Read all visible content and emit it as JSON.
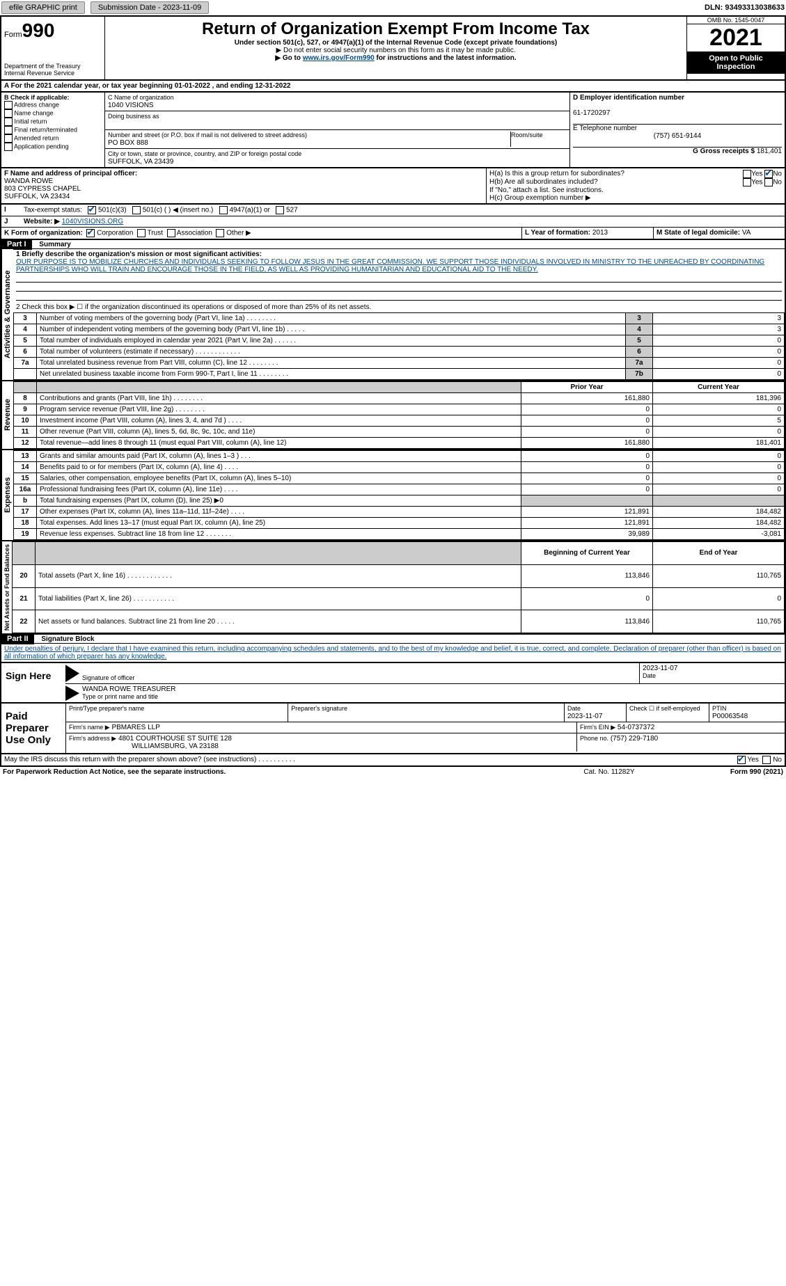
{
  "topbar": {
    "efile": "efile GRAPHIC print",
    "submission": "Submission Date - 2023-11-09",
    "dln": "DLN: 93493313038633"
  },
  "header": {
    "form_prefix": "Form",
    "form_num": "990",
    "dept": "Department of the Treasury",
    "irs": "Internal Revenue Service",
    "title": "Return of Organization Exempt From Income Tax",
    "sub1": "Under section 501(c), 527, or 4947(a)(1) of the Internal Revenue Code (except private foundations)",
    "sub2": "▶ Do not enter social security numbers on this form as it may be made public.",
    "sub3_pre": "▶ Go to ",
    "sub3_link": "www.irs.gov/Form990",
    "sub3_post": " for instructions and the latest information.",
    "omb": "OMB No. 1545-0047",
    "year": "2021",
    "open": "Open to Public Inspection"
  },
  "lineA": "A For the 2021 calendar year, or tax year beginning 01-01-2022    , and ending 12-31-2022",
  "B": {
    "label": "B Check if applicable:",
    "opts": [
      "Address change",
      "Name change",
      "Initial return",
      "Final return/terminated",
      "Amended return",
      "Application pending"
    ]
  },
  "C": {
    "name_lbl": "C Name of organization",
    "name_val": "1040 VISIONS",
    "dba_lbl": "Doing business as",
    "addr_lbl": "Number and street (or P.O. box if mail is not delivered to street address)",
    "room_lbl": "Room/suite",
    "addr_val": "PO BOX 888",
    "city_lbl": "City or town, state or province, country, and ZIP or foreign postal code",
    "city_val": "SUFFOLK, VA  23439"
  },
  "D": {
    "lbl": "D Employer identification number",
    "val": "61-1720297"
  },
  "E": {
    "lbl": "E Telephone number",
    "val": "(757) 651-9144"
  },
  "G": {
    "lbl": "G Gross receipts $",
    "val": "181,401"
  },
  "F": {
    "lbl": "F  Name and address of principal officer:",
    "name": "WANDA ROWE",
    "addr1": "803 CYPRESS CHAPEL",
    "addr2": "SUFFOLK, VA  23434"
  },
  "H": {
    "a": "H(a)  Is this a group return for subordinates?",
    "b": "H(b)  Are all subordinates included?",
    "b2": "If \"No,\" attach a list. See instructions.",
    "c": "H(c)  Group exemption number ▶"
  },
  "I": {
    "lbl": "Tax-exempt status:",
    "o1": "501(c)(3)",
    "o2": "501(c) (    ) ◀ (insert no.)",
    "o3": "4947(a)(1) or",
    "o4": "527"
  },
  "J": {
    "lbl": "Website: ▶",
    "val": "1040VISIONS.ORG"
  },
  "K": {
    "lbl": "K Form of organization:",
    "o1": "Corporation",
    "o2": "Trust",
    "o3": "Association",
    "o4": "Other ▶"
  },
  "L": {
    "lbl": "L Year of formation:",
    "val": "2013"
  },
  "M": {
    "lbl": "M State of legal domicile:",
    "val": "VA"
  },
  "part1": {
    "num": "Part I",
    "title": "Summary"
  },
  "summary": {
    "l1_lbl": "1  Briefly describe the organization's mission or most significant activities:",
    "l1_val": "OUR PURPOSE IS TO MOBILIZE CHURCHES AND INDIVIDUALS SEEKING TO FOLLOW JESUS IN THE GREAT COMMISSION. WE SUPPORT THOSE INDIVIDUALS INVOLVED IN MINISTRY TO THE UNREACHED BY COORDINATING PARTNERSHIPS WHO WILL TRAIN AND ENCOURAGE THOSE IN THE FIELD, AS WELL AS PROVIDING HUMANITARIAN AND EDUCATIONAL AID TO THE NEEDY.",
    "l2": "2    Check this box ▶ ☐  if the organization discontinued its operations or disposed of more than 25% of its net assets.",
    "rows_ag": [
      {
        "n": "3",
        "t": "Number of voting members of the governing body (Part VI, line 1a)   .    .    .    .    .    .    .    .",
        "box": "3",
        "v": "3"
      },
      {
        "n": "4",
        "t": "Number of independent voting members of the governing body (Part VI, line 1b)   .    .    .    .    .",
        "box": "4",
        "v": "3"
      },
      {
        "n": "5",
        "t": "Total number of individuals employed in calendar year 2021 (Part V, line 2a)    .    .    .    .    .    .",
        "box": "5",
        "v": "0"
      },
      {
        "n": "6",
        "t": "Total number of volunteers (estimate if necessary)    .    .    .    .    .    .    .    .    .    .    .    .",
        "box": "6",
        "v": "0"
      },
      {
        "n": "7a",
        "t": "Total unrelated business revenue from Part VIII, column (C), line 12    .    .    .    .    .    .    .    .",
        "box": "7a",
        "v": "0"
      },
      {
        "n": "",
        "t": "Net unrelated business taxable income from Form 990-T, Part I, line 11   .    .    .    .    .    .    .    .",
        "box": "7b",
        "v": "0"
      }
    ],
    "col_prior": "Prior Year",
    "col_curr": "Current Year",
    "rev": [
      {
        "n": "8",
        "t": "Contributions and grants (Part VIII, line 1h)    .    .    .    .    .    .    .    .",
        "p": "161,880",
        "c": "181,396"
      },
      {
        "n": "9",
        "t": "Program service revenue (Part VIII, line 2g)   .    .    .    .    .    .    .    .",
        "p": "0",
        "c": "0"
      },
      {
        "n": "10",
        "t": "Investment income (Part VIII, column (A), lines 3, 4, and 7d )    .    .    .    .",
        "p": "0",
        "c": "5"
      },
      {
        "n": "11",
        "t": "Other revenue (Part VIII, column (A), lines 5, 6d, 8c, 9c, 10c, and 11e)",
        "p": "0",
        "c": "0"
      },
      {
        "n": "12",
        "t": "Total revenue—add lines 8 through 11 (must equal Part VIII, column (A), line 12)",
        "p": "161,880",
        "c": "181,401"
      }
    ],
    "exp": [
      {
        "n": "13",
        "t": "Grants and similar amounts paid (Part IX, column (A), lines 1–3 )   .    .    .",
        "p": "0",
        "c": "0"
      },
      {
        "n": "14",
        "t": "Benefits paid to or for members (Part IX, column (A), line 4)   .    .    .    .",
        "p": "0",
        "c": "0"
      },
      {
        "n": "15",
        "t": "Salaries, other compensation, employee benefits (Part IX, column (A), lines 5–10)",
        "p": "0",
        "c": "0"
      },
      {
        "n": "16a",
        "t": "Professional fundraising fees (Part IX, column (A), line 11e)   .    .    .    .",
        "p": "0",
        "c": "0"
      },
      {
        "n": "b",
        "t": "Total fundraising expenses (Part IX, column (D), line 25) ▶0",
        "p": "",
        "c": "",
        "shade": true
      },
      {
        "n": "17",
        "t": "Other expenses (Part IX, column (A), lines 11a–11d, 11f–24e)    .    .    .    .",
        "p": "121,891",
        "c": "184,482"
      },
      {
        "n": "18",
        "t": "Total expenses. Add lines 13–17 (must equal Part IX, column (A), line 25)",
        "p": "121,891",
        "c": "184,482"
      },
      {
        "n": "19",
        "t": "Revenue less expenses. Subtract line 18 from line 12 .    .    .    .    .    .    .",
        "p": "39,989",
        "c": "-3,081"
      }
    ],
    "col_boy": "Beginning of Current Year",
    "col_eoy": "End of Year",
    "net": [
      {
        "n": "20",
        "t": "Total assets (Part X, line 16)   .    .    .    .    .    .    .    .    .    .    .    .",
        "p": "113,846",
        "c": "110,765"
      },
      {
        "n": "21",
        "t": "Total liabilities (Part X, line 26)    .    .    .    .    .    .    .    .    .    .    .",
        "p": "0",
        "c": "0"
      },
      {
        "n": "22",
        "t": "Net assets or fund balances. Subtract line 21 from line 20    .    .    .    .    .",
        "p": "113,846",
        "c": "110,765"
      }
    ],
    "vtab_ag": "Activities & Governance",
    "vtab_rev": "Revenue",
    "vtab_exp": "Expenses",
    "vtab_net": "Net Assets or Fund Balances"
  },
  "part2": {
    "num": "Part II",
    "title": "Signature Block"
  },
  "sig": {
    "penalty": "Under penalties of perjury, I declare that I have examined this return, including accompanying schedules and statements, and to the best of my knowledge and belief, it is true, correct, and complete. Declaration of preparer (other than officer) is based on all information of which preparer has any knowledge.",
    "sign_here": "Sign Here",
    "sig_officer": "Signature of officer",
    "date1": "2023-11-07",
    "date_lbl": "Date",
    "name_title": "WANDA ROWE  TREASURER",
    "name_title_lbl": "Type or print name and title",
    "paid": "Paid Preparer Use Only",
    "prep_name_lbl": "Print/Type preparer's name",
    "prep_sig_lbl": "Preparer's signature",
    "prep_date_lbl": "Date",
    "prep_date": "2023-11-07",
    "check_self": "Check ☐ if self-employed",
    "ptin_lbl": "PTIN",
    "ptin": "P00063548",
    "firm_name_lbl": "Firm's name    ▶",
    "firm_name": "PBMARES LLP",
    "firm_ein_lbl": "Firm's EIN ▶",
    "firm_ein": "54-0737372",
    "firm_addr_lbl": "Firm's address ▶",
    "firm_addr1": "4801 COURTHOUSE ST SUITE 128",
    "firm_addr2": "WILLIAMSBURG, VA  23188",
    "phone_lbl": "Phone no.",
    "phone": "(757) 229-7180",
    "may_irs": "May the IRS discuss this return with the preparer shown above? (see instructions)    .    .    .    .    .    .    .    .    .    .",
    "yes": "Yes",
    "no": "No"
  },
  "footer": {
    "pra": "For Paperwork Reduction Act Notice, see the separate instructions.",
    "cat": "Cat. No. 11282Y",
    "form": "Form 990 (2021)"
  },
  "yn": {
    "yes": "Yes",
    "no": "No"
  }
}
